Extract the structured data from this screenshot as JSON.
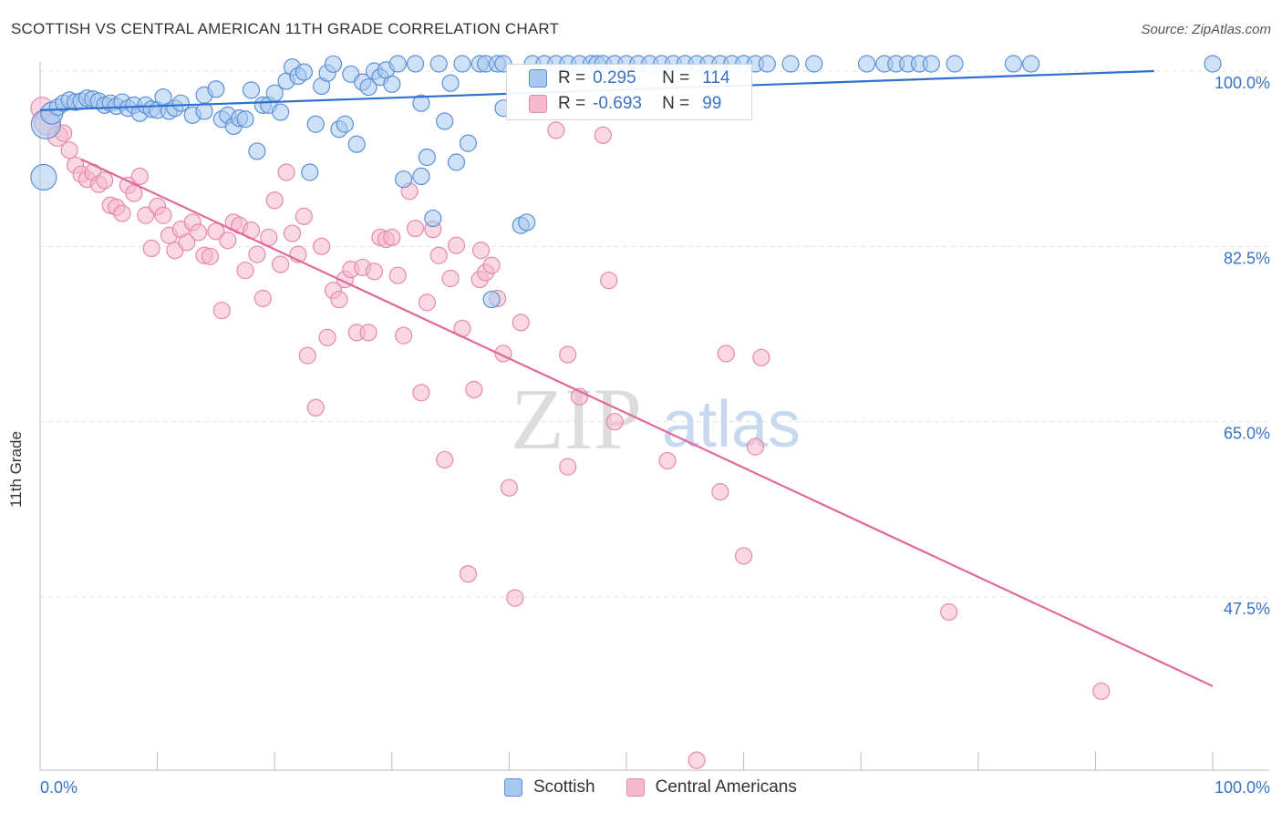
{
  "title": "SCOTTISH VS CENTRAL AMERICAN 11TH GRADE CORRELATION CHART",
  "source": "Source: ZipAtlas.com",
  "watermark": {
    "zip": "ZIP",
    "atlas": "atlas"
  },
  "legend_top": {
    "rows": [
      {
        "r_label": "R =",
        "r_value": "0.295",
        "n_label": "N =",
        "n_value": "114"
      },
      {
        "r_label": "R =",
        "r_value": "-0.693",
        "n_label": "N =",
        "n_value": "99"
      }
    ]
  },
  "legend_bottom": [
    "Scottish",
    "Central Americans"
  ],
  "colors": {
    "scottish_fill": "#a8c8f0",
    "scottish_stroke": "#5b8fd6",
    "scottish_line": "#2f6fcf",
    "central_fill": "#f6b8cc",
    "central_stroke": "#e58aa8",
    "central_line": "#e0689a",
    "tick_label": "#3a72c6",
    "grid": "#e3e3e3"
  },
  "chart_data": {
    "type": "scatter",
    "title": "SCOTTISH VS CENTRAL AMERICAN 11TH GRADE CORRELATION CHART",
    "xlabel": "",
    "ylabel": "11th Grade",
    "xlim": [
      0,
      100
    ],
    "ylim": [
      30,
      100
    ],
    "x_tick_labels": [
      "0.0%",
      "100.0%"
    ],
    "y_ticks": [
      47.5,
      65.0,
      82.5,
      100.0
    ],
    "y_tick_labels": [
      "47.5%",
      "65.0%",
      "82.5%",
      "100.0%"
    ],
    "grid": "horizontal dashed",
    "legend_position": "top-center",
    "series": [
      {
        "name": "Scottish",
        "r": 0.295,
        "n": 114,
        "trend": [
          [
            0,
            96.1
          ],
          [
            95,
            100
          ]
        ],
        "points": [
          [
            0.3,
            89.4,
            14
          ],
          [
            0.5,
            94.7,
            16
          ],
          [
            1.0,
            95.8,
            12
          ],
          [
            1.5,
            96.4,
            9
          ],
          [
            2.0,
            96.8,
            9
          ],
          [
            2.5,
            97.1,
            9
          ],
          [
            3.0,
            96.9,
            9
          ],
          [
            3.5,
            97.0,
            9
          ],
          [
            4.0,
            97.3,
            9
          ],
          [
            4.5,
            97.2,
            9
          ],
          [
            5.0,
            97.0,
            9
          ],
          [
            5.5,
            96.6,
            9
          ],
          [
            6.0,
            96.8,
            9
          ],
          [
            6.5,
            96.5,
            9
          ],
          [
            7.0,
            96.9,
            9
          ],
          [
            7.5,
            96.3,
            9
          ],
          [
            8.0,
            96.6,
            9
          ],
          [
            8.5,
            95.8,
            9
          ],
          [
            9.0,
            96.6,
            9
          ],
          [
            9.5,
            96.2,
            9
          ],
          [
            10.0,
            96.1,
            9
          ],
          [
            10.5,
            97.4,
            9
          ],
          [
            11.0,
            96.0,
            9
          ],
          [
            11.5,
            96.3,
            9
          ],
          [
            12.0,
            96.8,
            9
          ],
          [
            13.0,
            95.6,
            9
          ],
          [
            14.0,
            96.0,
            9
          ],
          [
            14.0,
            97.6,
            9
          ],
          [
            15.0,
            98.2,
            9
          ],
          [
            15.5,
            95.2,
            9
          ],
          [
            16.0,
            95.6,
            9
          ],
          [
            16.5,
            94.5,
            9
          ],
          [
            17.0,
            95.3,
            9
          ],
          [
            17.5,
            95.2,
            9
          ],
          [
            18.0,
            98.1,
            9
          ],
          [
            18.5,
            92.0,
            9
          ],
          [
            19.0,
            96.6,
            9
          ],
          [
            19.5,
            96.6,
            9
          ],
          [
            20.0,
            97.8,
            9
          ],
          [
            20.5,
            95.9,
            9
          ],
          [
            21.0,
            99.0,
            9
          ],
          [
            21.5,
            100.4,
            9
          ],
          [
            22.0,
            99.5,
            9
          ],
          [
            22.5,
            99.9,
            9
          ],
          [
            23.0,
            89.9,
            9
          ],
          [
            23.5,
            94.7,
            9
          ],
          [
            24.0,
            98.5,
            9
          ],
          [
            24.5,
            99.8,
            9
          ],
          [
            25.0,
            100.7,
            9
          ],
          [
            25.5,
            94.2,
            9
          ],
          [
            26.0,
            94.7,
            9
          ],
          [
            26.5,
            99.7,
            9
          ],
          [
            27.0,
            92.7,
            9
          ],
          [
            27.5,
            98.9,
            9
          ],
          [
            28.0,
            98.4,
            9
          ],
          [
            28.5,
            100.0,
            9
          ],
          [
            29.0,
            99.4,
            9
          ],
          [
            29.5,
            100.1,
            9
          ],
          [
            30.0,
            98.7,
            9
          ],
          [
            30.5,
            101.0,
            9
          ],
          [
            31.0,
            89.2,
            9
          ],
          [
            32.0,
            101.0,
            9
          ],
          [
            32.5,
            89.5,
            9
          ],
          [
            32.5,
            96.8,
            9
          ],
          [
            33.0,
            91.4,
            9
          ],
          [
            33.5,
            85.3,
            9
          ],
          [
            34.0,
            101.0,
            9
          ],
          [
            34.5,
            95.0,
            9
          ],
          [
            35.5,
            90.9,
            9
          ],
          [
            35.0,
            98.8,
            9
          ],
          [
            36.0,
            101.0,
            9
          ],
          [
            36.5,
            92.8,
            9
          ],
          [
            37.5,
            101.0,
            9
          ],
          [
            38.0,
            101.0,
            9
          ],
          [
            38.5,
            77.2,
            9
          ],
          [
            39.0,
            101.0,
            9
          ],
          [
            39.5,
            101.0,
            9
          ],
          [
            39.5,
            96.3,
            9
          ],
          [
            41.0,
            84.6,
            9
          ],
          [
            41.5,
            84.9,
            9
          ],
          [
            42.0,
            101.0,
            9
          ],
          [
            43.0,
            101.0,
            9
          ],
          [
            44.0,
            101.0,
            9
          ],
          [
            45.0,
            101.0,
            9
          ],
          [
            46.0,
            101.0,
            9
          ],
          [
            47.0,
            101.0,
            9
          ],
          [
            47.5,
            101.0,
            9
          ],
          [
            48.0,
            101.0,
            9
          ],
          [
            49.0,
            101.0,
            9
          ],
          [
            50.0,
            101.0,
            9
          ],
          [
            51.0,
            101.0,
            9
          ],
          [
            52.0,
            101.0,
            9
          ],
          [
            53.0,
            101.0,
            9
          ],
          [
            54.0,
            101.0,
            9
          ],
          [
            55.0,
            101.0,
            9
          ],
          [
            56.0,
            101.0,
            9
          ],
          [
            57.0,
            101.0,
            9
          ],
          [
            58.0,
            101.0,
            9
          ],
          [
            59.0,
            101.0,
            9
          ],
          [
            60.0,
            101.0,
            9
          ],
          [
            61.0,
            101.0,
            9
          ],
          [
            62.0,
            101.0,
            9
          ],
          [
            64.0,
            101.0,
            9
          ],
          [
            66.0,
            101.0,
            9
          ],
          [
            70.5,
            101.0,
            9
          ],
          [
            72.0,
            101.0,
            9
          ],
          [
            73.0,
            101.0,
            9
          ],
          [
            74.0,
            101.0,
            9
          ],
          [
            75.0,
            101.0,
            9
          ],
          [
            76.0,
            101.0,
            9
          ],
          [
            78.0,
            101.0,
            9
          ],
          [
            83.0,
            101.0,
            9
          ],
          [
            84.5,
            101.0,
            9
          ],
          [
            100.0,
            101.0,
            9
          ]
        ]
      },
      {
        "name": "Central Americans",
        "r": -0.693,
        "n": 99,
        "trend": [
          [
            3.5,
            91.2
          ],
          [
            100,
            38.6
          ]
        ],
        "points": [
          [
            0.1,
            96.3,
            12
          ],
          [
            0.6,
            94.9,
            14
          ],
          [
            1.5,
            93.5,
            11
          ],
          [
            2.0,
            93.8,
            9
          ],
          [
            2.5,
            92.1,
            9
          ],
          [
            3.0,
            90.6,
            9
          ],
          [
            3.5,
            89.7,
            9
          ],
          [
            4.0,
            89.2,
            9
          ],
          [
            4.5,
            89.9,
            9
          ],
          [
            5.0,
            88.7,
            9
          ],
          [
            5.5,
            89.1,
            9
          ],
          [
            6.0,
            86.6,
            9
          ],
          [
            6.5,
            86.4,
            9
          ],
          [
            7.0,
            85.8,
            9
          ],
          [
            7.5,
            88.6,
            9
          ],
          [
            8.0,
            87.8,
            9
          ],
          [
            8.5,
            89.5,
            9
          ],
          [
            9.0,
            85.6,
            9
          ],
          [
            9.5,
            82.3,
            9
          ],
          [
            10.0,
            86.5,
            9
          ],
          [
            10.5,
            85.6,
            9
          ],
          [
            11.0,
            83.6,
            9
          ],
          [
            11.5,
            82.1,
            9
          ],
          [
            12.0,
            84.2,
            9
          ],
          [
            12.5,
            82.9,
            9
          ],
          [
            13.0,
            84.9,
            9
          ],
          [
            13.5,
            83.9,
            9
          ],
          [
            14.0,
            81.6,
            9
          ],
          [
            14.5,
            81.5,
            9
          ],
          [
            15.0,
            84.0,
            9
          ],
          [
            15.5,
            76.1,
            9
          ],
          [
            16.0,
            83.1,
            9
          ],
          [
            16.5,
            84.9,
            9
          ],
          [
            17.0,
            84.6,
            9
          ],
          [
            17.5,
            80.1,
            9
          ],
          [
            18.0,
            84.1,
            9
          ],
          [
            18.5,
            81.7,
            9
          ],
          [
            19.0,
            77.3,
            9
          ],
          [
            19.5,
            83.4,
            9
          ],
          [
            20.0,
            87.1,
            9
          ],
          [
            20.5,
            80.7,
            9
          ],
          [
            21.0,
            89.9,
            9
          ],
          [
            21.5,
            83.8,
            9
          ],
          [
            22.0,
            81.7,
            9
          ],
          [
            22.5,
            85.5,
            9
          ],
          [
            22.8,
            71.6,
            9
          ],
          [
            23.5,
            66.4,
            9
          ],
          [
            24.0,
            82.5,
            9
          ],
          [
            24.5,
            73.4,
            9
          ],
          [
            25.0,
            78.1,
            9
          ],
          [
            25.5,
            77.2,
            9
          ],
          [
            26.0,
            79.2,
            9
          ],
          [
            26.5,
            80.2,
            9
          ],
          [
            27.0,
            73.9,
            9
          ],
          [
            27.5,
            80.4,
            9
          ],
          [
            28.0,
            73.9,
            9
          ],
          [
            28.5,
            80.0,
            9
          ],
          [
            29.0,
            83.4,
            9
          ],
          [
            29.5,
            83.2,
            9
          ],
          [
            30.0,
            83.4,
            9
          ],
          [
            30.5,
            79.6,
            9
          ],
          [
            31.0,
            73.6,
            9
          ],
          [
            31.5,
            88.0,
            9
          ],
          [
            32.0,
            84.3,
            9
          ],
          [
            32.5,
            67.9,
            9
          ],
          [
            33.0,
            76.9,
            9
          ],
          [
            33.5,
            84.2,
            9
          ],
          [
            34.0,
            81.6,
            9
          ],
          [
            34.5,
            61.2,
            9
          ],
          [
            35.0,
            79.3,
            9
          ],
          [
            35.5,
            82.6,
            9
          ],
          [
            36.0,
            74.3,
            9
          ],
          [
            36.5,
            49.8,
            9
          ],
          [
            37.0,
            68.2,
            9
          ],
          [
            37.5,
            79.2,
            9
          ],
          [
            37.6,
            82.1,
            9
          ],
          [
            38.0,
            79.9,
            9
          ],
          [
            38.5,
            80.6,
            9
          ],
          [
            39.0,
            77.3,
            9
          ],
          [
            39.5,
            71.8,
            9
          ],
          [
            40.0,
            58.4,
            9
          ],
          [
            40.5,
            47.4,
            9
          ],
          [
            41.0,
            74.9,
            9
          ],
          [
            44.0,
            94.1,
            9
          ],
          [
            45.0,
            71.7,
            9
          ],
          [
            46.0,
            67.5,
            9
          ],
          [
            48.0,
            93.6,
            9
          ],
          [
            48.5,
            79.1,
            9
          ],
          [
            49.0,
            65.0,
            9
          ],
          [
            53.5,
            61.1,
            9
          ],
          [
            56.0,
            31.2,
            9
          ],
          [
            58.0,
            58.0,
            9
          ],
          [
            60.0,
            51.6,
            9
          ],
          [
            61.0,
            62.5,
            9
          ],
          [
            61.5,
            71.4,
            9
          ],
          [
            77.5,
            46.0,
            9
          ],
          [
            90.5,
            38.1,
            9
          ],
          [
            58.5,
            71.8,
            9
          ],
          [
            45.0,
            60.5,
            9
          ]
        ]
      }
    ]
  }
}
